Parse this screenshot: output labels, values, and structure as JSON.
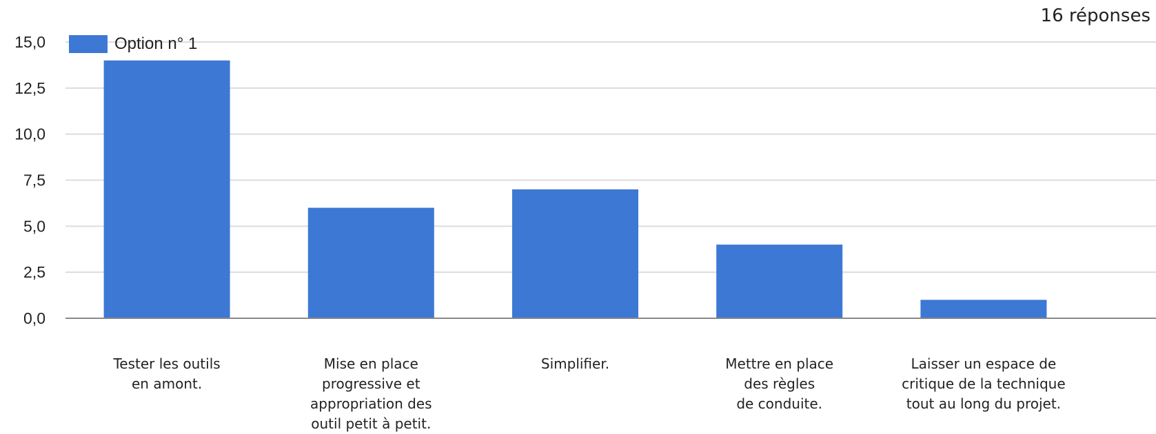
{
  "header": {
    "response_count": "16 réponses"
  },
  "colors": {
    "bar": "#3d78d4",
    "grid": "#dcdcdc",
    "axis": "#888888",
    "text": "#222222"
  },
  "chart_data": {
    "type": "bar",
    "title": "",
    "xlabel": "",
    "ylabel": "",
    "ylim": [
      0,
      15
    ],
    "y_ticks": [
      {
        "value": 0,
        "label": "0,0"
      },
      {
        "value": 2.5,
        "label": "2,5"
      },
      {
        "value": 5,
        "label": "5,0"
      },
      {
        "value": 7.5,
        "label": "7,5"
      },
      {
        "value": 10,
        "label": "10,0"
      },
      {
        "value": 12.5,
        "label": "12,5"
      },
      {
        "value": 15,
        "label": "15,0"
      }
    ],
    "grid": true,
    "legend_position": "top-left",
    "categories": [
      [
        "Tester les outils",
        "en amont."
      ],
      [
        "Mise en place",
        "progressive et",
        "appropriation des",
        "outil petit à petit."
      ],
      [
        "Simplifier."
      ],
      [
        "Mettre en place",
        "des règles",
        "de conduite."
      ],
      [
        "Laisser un espace de",
        "critique de la technique",
        "tout au long du projet."
      ]
    ],
    "series": [
      {
        "name": "Option n° 1",
        "values": [
          14,
          6,
          7,
          4,
          1
        ]
      }
    ]
  }
}
